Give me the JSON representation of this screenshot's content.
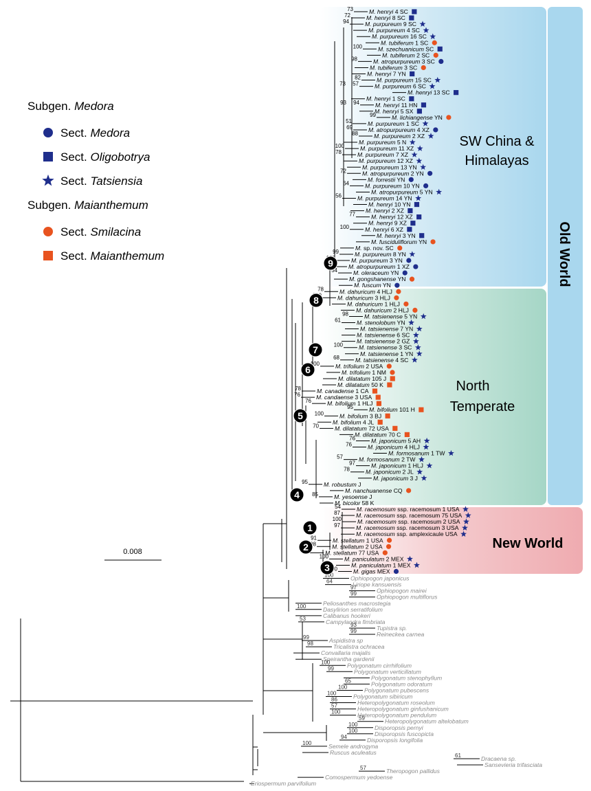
{
  "legend": {
    "groups": [
      {
        "prefix": "Subgen.",
        "name": "Medora",
        "items": [
          {
            "prefix": "Sect.",
            "name": "Medora",
            "m": "medora"
          },
          {
            "prefix": "Sect.",
            "name": "Oligobotrya",
            "m": "oligobotrya"
          },
          {
            "prefix": "Sect.",
            "name": "Tatsiensia",
            "m": "tatsiensia"
          }
        ]
      },
      {
        "prefix": "Subgen.",
        "name": "Maianthemum",
        "items": [
          {
            "prefix": "Sect.",
            "name": "Smilacina",
            "m": "smilacina"
          },
          {
            "prefix": "Sect.",
            "name": "Maianthemum",
            "m": "maianthemum"
          }
        ]
      }
    ]
  },
  "regions": {
    "sw": [
      "SW China &",
      "Himalayas"
    ],
    "nt": [
      "North",
      "Temperate"
    ],
    "nw": "New World",
    "ow": "Old World"
  },
  "scale": "0.008",
  "nodes": [
    "1",
    "2",
    "3",
    "4",
    "5",
    "6",
    "7",
    "8",
    "9"
  ],
  "taxa": [
    {
      "n": "M. henryi",
      "c": "4 SC",
      "m": "oligobotrya",
      "s": 73
    },
    {
      "n": "M. henryi",
      "c": "8 SC",
      "m": "oligobotrya",
      "s": 72
    },
    {
      "n": "M. purpureum",
      "c": "9 SC",
      "m": "tatsiensia",
      "s": 94
    },
    {
      "n": "M. purpureum",
      "c": "4 SC",
      "m": "tatsiensia"
    },
    {
      "n": "M. purpureum",
      "c": "16 SC",
      "m": "tatsiensia"
    },
    {
      "n": "M. tubiferum",
      "c": "1 SC",
      "m": "smilacina"
    },
    {
      "n": "M. szechuanicum",
      "c": "SC",
      "m": "oligobotrya",
      "s": 100
    },
    {
      "n": "M. tubiferum",
      "c": "2 SC",
      "m": "smilacina"
    },
    {
      "n": "M. atropurpureum",
      "c": "3 SC",
      "m": "medora",
      "s": 98
    },
    {
      "n": "M. tubiferum",
      "c": "3 SC",
      "m": "smilacina"
    },
    {
      "n": "M. henryi",
      "c": "7 YN",
      "m": "oligobotrya"
    },
    {
      "n": "M. purpureum",
      "c": "15 SC",
      "m": "tatsiensia",
      "s": 82
    },
    {
      "n": "M. purpureum",
      "c": "6 SC",
      "m": "tatsiensia",
      "s": 57,
      "s2": 73
    },
    {
      "n": "M. henryi",
      "c": "13 SC",
      "m": "oligobotrya"
    },
    {
      "n": "M. henryi",
      "c": "1 SC",
      "m": "oligobotrya"
    },
    {
      "n": "M. henryi",
      "c": "11 HN",
      "m": "oligobotrya",
      "s": 94,
      "s2": 93
    },
    {
      "n": "M. henryi",
      "c": "5 SX",
      "m": "oligobotrya"
    },
    {
      "n": "M. lichiangense",
      "c": "YN",
      "m": "smilacina",
      "s": 99
    },
    {
      "n": "M. purpureum",
      "c": "1 SC",
      "m": "tatsiensia",
      "s": 51
    },
    {
      "n": "M. atropurpureum",
      "c": "4 XZ",
      "m": "medora",
      "s": 69
    },
    {
      "n": "M. purpureum",
      "c": "2 XZ",
      "m": "tatsiensia",
      "s": 88
    },
    {
      "n": "M. purpureum",
      "c": "5 N",
      "m": "tatsiensia"
    },
    {
      "n": "M. purpureum",
      "c": "11 XZ",
      "m": "tatsiensia",
      "s": 100
    },
    {
      "n": "M. purpureum",
      "c": "7 XZ",
      "m": "tatsiensia",
      "s": 78
    },
    {
      "n": "M. purpureum",
      "c": "12 XZ",
      "m": "tatsiensia"
    },
    {
      "n": "M. purpureum",
      "c": "13 YN",
      "m": "tatsiensia"
    },
    {
      "n": "M. atropurpureum",
      "c": "2 YN",
      "m": "medora",
      "s": 72
    },
    {
      "n": "M. forrestii",
      "c": "YN",
      "m": "medora"
    },
    {
      "n": "M. purpureum",
      "c": "10 YN",
      "m": "medora",
      "s": 64
    },
    {
      "n": "M. atropurpureum",
      "c": "5 YN",
      "m": "tatsiensia"
    },
    {
      "n": "M. purpureum",
      "c": "14 YN",
      "m": "tatsiensia",
      "s": 56
    },
    {
      "n": "M. henryi",
      "c": "10 YN",
      "m": "oligobotrya"
    },
    {
      "n": "M. henryi",
      "c": "2 XZ",
      "m": "oligobotrya"
    },
    {
      "n": "M. henryi",
      "c": "12 XZ",
      "m": "oligobotrya",
      "s": 77
    },
    {
      "n": "M. henryi",
      "c": "9 XZ",
      "m": "oligobotrya"
    },
    {
      "n": "M. henryi",
      "c": "6 XZ",
      "m": "oligobotrya",
      "s": 100
    },
    {
      "n": "M. henryi",
      "c": "3 YN",
      "m": "oligobotrya"
    },
    {
      "n": "M. fusciduliflorum",
      "c": "YN",
      "m": "smilacina"
    },
    {
      "n": "M.",
      "c": "sp. nov. SC",
      "m": "smilacina"
    },
    {
      "n": "M. purpureum",
      "c": "8 YN",
      "m": "tatsiensia",
      "s": 99
    },
    {
      "n": "M. purpureum",
      "c": "3 YN",
      "m": "medora",
      "s": 100
    },
    {
      "n": "M. atropurpureum",
      "c": "1 XZ",
      "m": "medora"
    },
    {
      "n": "M. oleraceum",
      "c": "YN",
      "m": "medora",
      "s": 54
    },
    {
      "n": "M. gongshanense",
      "c": "YN",
      "m": "smilacina"
    },
    {
      "n": "M. fuscum",
      "c": "YN",
      "m": "medora"
    },
    {
      "n": "M. dahuricum",
      "c": "4 HLJ",
      "m": "smilacina",
      "s": 78
    },
    {
      "n": "M. dahuricum",
      "c": "3 HLJ",
      "m": "smilacina",
      "s": 100
    },
    {
      "n": "M. dahuricum",
      "c": "1 HLJ",
      "m": "smilacina"
    },
    {
      "n": "M. dahuricum",
      "c": "2 HLJ",
      "m": "smilacina"
    },
    {
      "n": "M. tatsienense",
      "c": "5 YN",
      "m": "tatsiensia",
      "s": 98
    },
    {
      "n": "M. stenolobum",
      "c": "YN",
      "m": "tatsiensia",
      "s": 61
    },
    {
      "n": "M. tatsienense",
      "c": "7 YN",
      "m": "tatsiensia"
    },
    {
      "n": "M. tatsienense",
      "c": "6 SC",
      "m": "tatsiensia"
    },
    {
      "n": "M. tatsienense",
      "c": "2 GZ",
      "m": "tatsiensia"
    },
    {
      "n": "M. tatsienense",
      "c": "3 SC",
      "m": "tatsiensia",
      "s": 100
    },
    {
      "n": "M. tatsienense",
      "c": "1 YN",
      "m": "tatsiensia"
    },
    {
      "n": "M. tatsienense",
      "c": "4 SC",
      "m": "tatsiensia",
      "s": 68
    },
    {
      "n": "M. trifolium",
      "c": "2 USA",
      "m": "smilacina",
      "s": 100
    },
    {
      "n": "M. trifolium",
      "c": "1 NM",
      "m": "smilacina"
    },
    {
      "n": "M. dilatatum",
      "c": "105 J",
      "m": "maianthemum"
    },
    {
      "n": "M. dilatatum",
      "c": "50 K",
      "m": "maianthemum"
    },
    {
      "n": "M. canadense",
      "c": "1 CA",
      "m": "maianthemum",
      "s": 78
    },
    {
      "n": "M. candaense",
      "c": "3 USA",
      "m": "maianthemum",
      "s": 76
    },
    {
      "n": "M. bifolium",
      "c": "1 HLJ",
      "m": "maianthemum",
      "s": 76
    },
    {
      "n": "M. bifolium",
      "c": "101 H",
      "m": "maianthemum",
      "s": 95
    },
    {
      "n": "M. bifolium",
      "c": "3 BJ",
      "m": "maianthemum",
      "s": 100
    },
    {
      "n": "M. bifolium",
      "c": "4 JL",
      "m": "maianthemum"
    },
    {
      "n": "M. dilatatum",
      "c": "72 USA",
      "m": "maianthemum",
      "s": 70
    },
    {
      "n": "M. dilatatum",
      "c": "70 C",
      "m": "maianthemum"
    },
    {
      "n": "M. japonicum",
      "c": "5 AH",
      "m": "tatsiensia",
      "s": 76
    },
    {
      "n": "M. japonicum",
      "c": "4 HLJ",
      "m": "tatsiensia",
      "s": 76
    },
    {
      "n": "M. formosanum",
      "c": "1 TW",
      "m": "tatsiensia"
    },
    {
      "n": "M. formosanum",
      "c": "2 TW",
      "m": "tatsiensia",
      "s": 57
    },
    {
      "n": "M. japonicum",
      "c": "1 HLJ",
      "m": "tatsiensia",
      "s": 97
    },
    {
      "n": "M. japonicum",
      "c": "2 JL",
      "m": "tatsiensia",
      "s": 78
    },
    {
      "n": "M. japonicum",
      "c": "3 J",
      "m": "tatsiensia"
    },
    {
      "n": "M. robustum",
      "c": "J",
      "s": 95
    },
    {
      "n": "M. nanchuanense",
      "c": "CQ",
      "m": "smilacina"
    },
    {
      "n": "M. yesoense",
      "c": "J",
      "s": 85
    },
    {
      "n": "M. bicolor",
      "c": "58 K"
    },
    {
      "n": "M. racemosum",
      "c": "ssp. racemosum 1 USA",
      "m": "tatsiensia",
      "s": 54
    },
    {
      "n": "M. racemosum",
      "c": "ssp. racemosum 75 USA",
      "m": "tatsiensia",
      "s": 87
    },
    {
      "n": "M. racemosum",
      "c": "ssp. racemosum 2 USA",
      "m": "tatsiensia",
      "s": 100
    },
    {
      "n": "M. racemosum",
      "c": "ssp. racemosum 3 USA",
      "m": "tatsiensia",
      "s": 97
    },
    {
      "n": "M. racemosum",
      "c": "ssp. amplexicaule USA",
      "m": "tatsiensia"
    },
    {
      "n": "M. stellatum",
      "c": "1 USA",
      "m": "smilacina",
      "s": 91
    },
    {
      "n": "M. stellatum",
      "c": "2 USA",
      "m": "smilacina",
      "s": 98
    },
    {
      "n": "M. stellatum",
      "c": "77 USA",
      "m": "smilacina",
      "s": 51
    },
    {
      "n": "M. paniculatum",
      "c": "2 MEX",
      "m": "tatsiensia",
      "s": 100
    },
    {
      "n": "M. paniculatum",
      "c": "1 MEX",
      "m": "tatsiensia"
    },
    {
      "n": "M. gigas",
      "c": "MEX",
      "m": "medora",
      "s": 100
    }
  ],
  "outgroups": [
    {
      "n": "Ophiopogon japonicus",
      "s": 100
    },
    {
      "n": "Liriope kansuensis",
      "s": 64
    },
    {
      "n": "Ophiopogon mairei",
      "s": 97
    },
    {
      "n": "Ophiopogon multiflorus",
      "s": 99
    },
    {
      "n": "Peliosanthes macrostegia"
    },
    {
      "n": "Dasylirion serratifolium",
      "s": 100
    },
    {
      "n": "Calibanus hookeri"
    },
    {
      "n": "Campylandra fimbriata",
      "s": 53
    },
    {
      "n": "Tupistra sp.",
      "s": 93
    },
    {
      "n": "Reineckea carnea",
      "s": 99
    },
    {
      "n": "Aspidistra sp",
      "s": 99
    },
    {
      "n": "Tricalistra ochracea",
      "s": 98
    },
    {
      "n": "Convallaria majalis"
    },
    {
      "n": "Speirantha gardenii"
    },
    {
      "n": "Polygonatum cirrhifolium",
      "s": 100
    },
    {
      "n": "Polygonatum verticillatum",
      "s": 99
    },
    {
      "n": "Polygonatum stenophyllum"
    },
    {
      "n": "Polygonatum odoratum",
      "s": 65
    },
    {
      "n": "Polygonatum pubescens",
      "s": 100
    },
    {
      "n": "Polygonatum sibiricum",
      "s": 100
    },
    {
      "n": "Heteropolygonatum roseolum",
      "s": 86
    },
    {
      "n": "Heteropolygonatum ginfushanicum",
      "s": 57
    },
    {
      "n": "Heteropolygonatum pendulum",
      "s": 100
    },
    {
      "n": "Heteropolygonatum altelobatum",
      "s": 59
    },
    {
      "n": "Disporopsis pernyi",
      "s": 100
    },
    {
      "n": "Disporopsis fuscopicta",
      "s": 100
    },
    {
      "n": "Disporopsis longifolia",
      "s": 94
    },
    {
      "n": "Semele androgyna",
      "s": 100
    },
    {
      "n": "Ruscus aculeatus"
    },
    {
      "n": "Dracaena sp.",
      "s": 61
    },
    {
      "n": "Sansevieria trifasciata"
    },
    {
      "n": "Theropogon pallidus",
      "s": 57
    },
    {
      "n": "Comospermum yedoense"
    },
    {
      "n": "Eriospermum parvifolium"
    }
  ]
}
